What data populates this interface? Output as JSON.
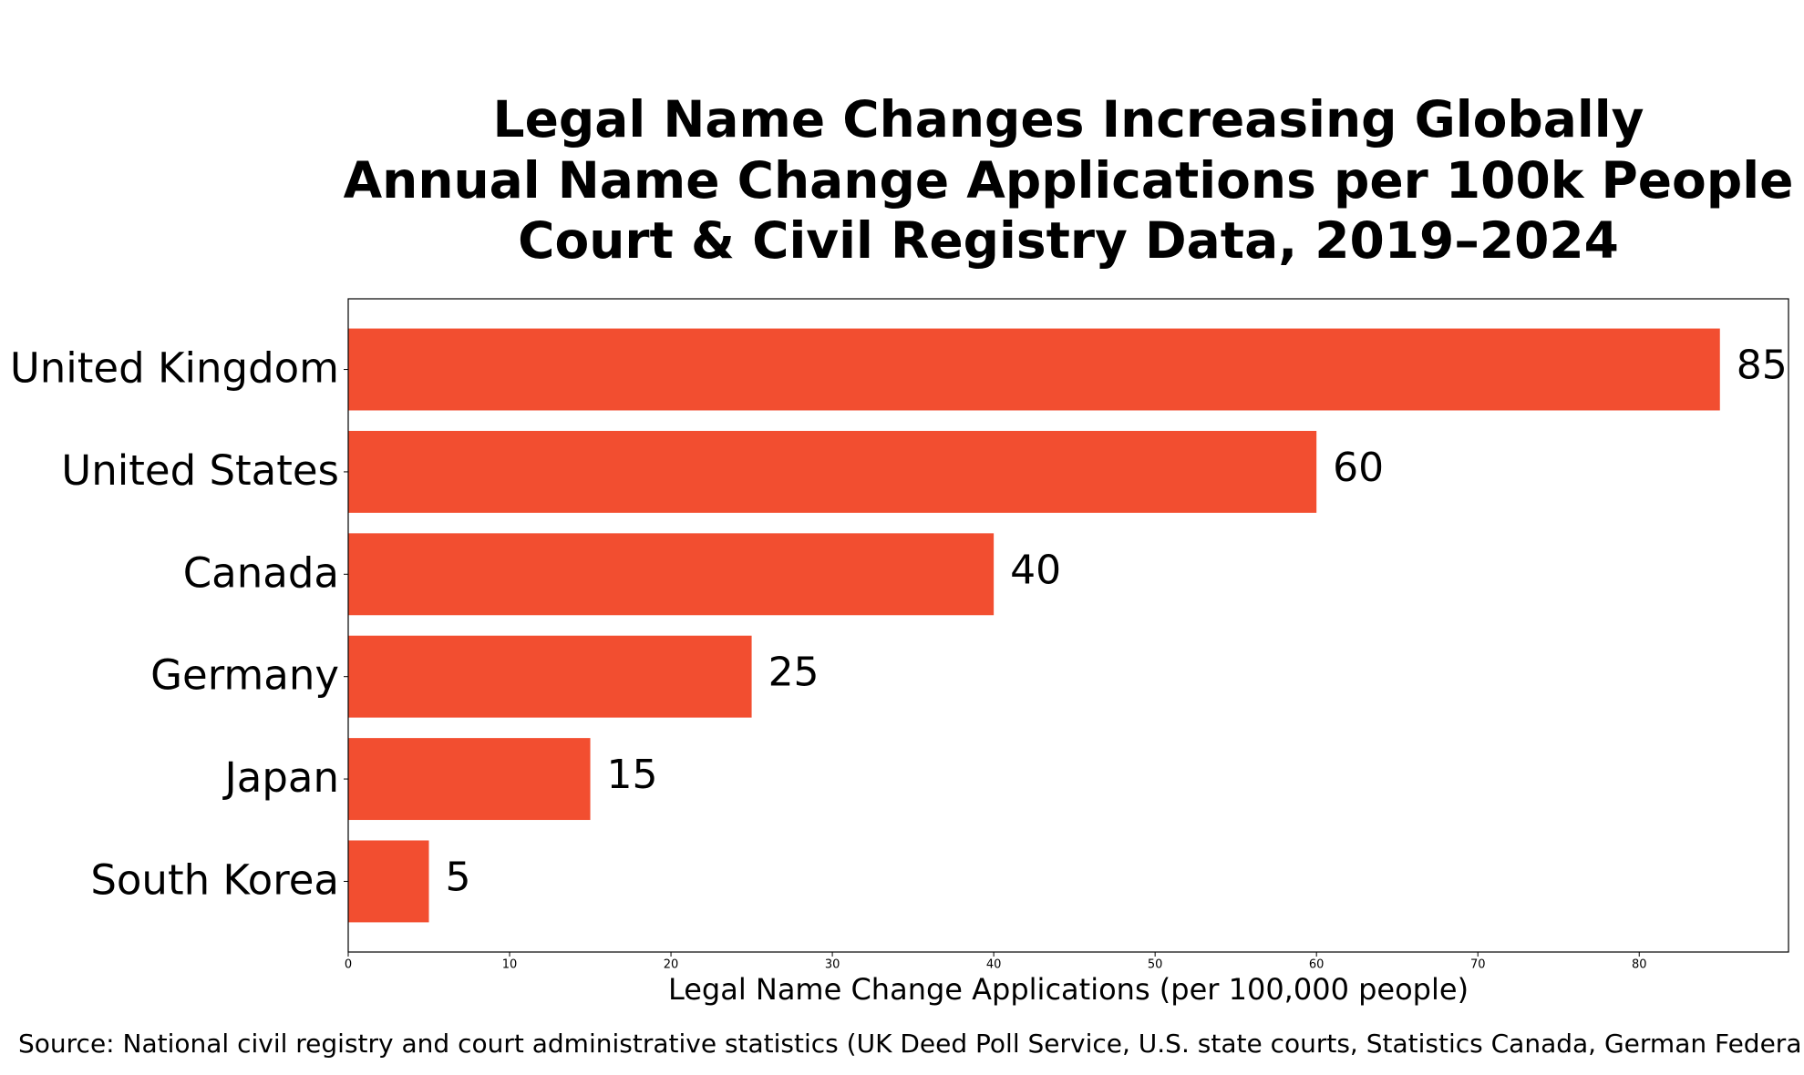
{
  "chart_data": {
    "type": "barh",
    "title": [
      "Legal Name Changes Increasing Globally",
      "Annual Name Change Applications per 100k People",
      "Court & Civil Registry Data, 2019–2024"
    ],
    "categories": [
      "United Kingdom",
      "United States",
      "Canada",
      "Germany",
      "Japan",
      "South Korea"
    ],
    "values": [
      85,
      60,
      40,
      25,
      15,
      5
    ],
    "color": "#f24e30",
    "xlabel": "Legal Name Change Applications (per 100,000 people)",
    "xlim": [
      0,
      89.25
    ],
    "xticks": [
      0,
      10,
      20,
      30,
      40,
      50,
      60,
      70,
      80
    ],
    "source": "Source: National civil registry and court administrative statistics (UK Deed Poll Service, U.S. state courts, Statistics Canada, German Federal"
  }
}
